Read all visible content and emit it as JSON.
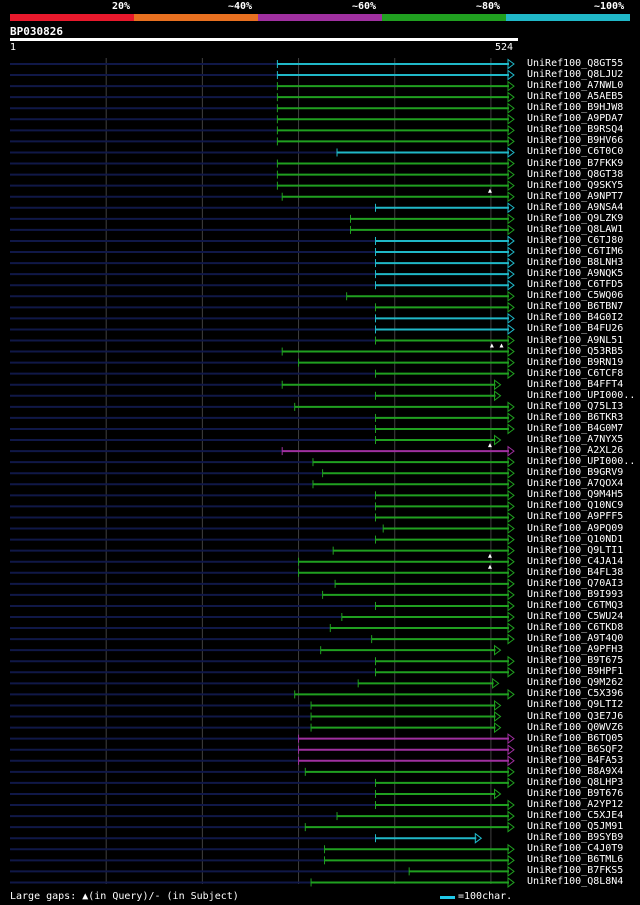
{
  "legend": [
    {
      "label": "20%",
      "color": "#e8192c"
    },
    {
      "label": "~40%",
      "color": "#e87020"
    },
    {
      "label": "~60%",
      "color": "#a030a0"
    },
    {
      "label": "~80%",
      "color": "#20a020"
    },
    {
      "label": "~100%",
      "color": "#20b8c8"
    }
  ],
  "query_id": "BP030826",
  "ruler": {
    "start_label": "1",
    "end_label": "524",
    "length": 524
  },
  "colors": {
    "background_line": "#101848",
    "grid": "#404040",
    "ruler": "#ffffff",
    "gap_marker": "#ffffff",
    "scale_bar": "#20c8e8"
  },
  "footer": {
    "gaps_text": "Large gaps: ▲(in Query)/- (in Subject)",
    "scale_text": "=100char."
  },
  "hits": [
    {
      "id": "UniRef100_Q8GT55",
      "start": 278,
      "end": 524,
      "identity": "cyan",
      "gaps": []
    },
    {
      "id": "UniRef100_Q8LJU2",
      "start": 278,
      "end": 524,
      "identity": "cyan",
      "gaps": []
    },
    {
      "id": "UniRef100_A7NWL0",
      "start": 278,
      "end": 524,
      "identity": "green",
      "gaps": []
    },
    {
      "id": "UniRef100_A5AEB5",
      "start": 278,
      "end": 524,
      "identity": "green",
      "gaps": []
    },
    {
      "id": "UniRef100_B9HJW8",
      "start": 278,
      "end": 524,
      "identity": "green",
      "gaps": []
    },
    {
      "id": "UniRef100_A9PDA7",
      "start": 278,
      "end": 524,
      "identity": "green",
      "gaps": []
    },
    {
      "id": "UniRef100_B9RSQ4",
      "start": 278,
      "end": 524,
      "identity": "green",
      "gaps": []
    },
    {
      "id": "UniRef100_B9HV66",
      "start": 278,
      "end": 524,
      "identity": "green",
      "gaps": []
    },
    {
      "id": "UniRef100_C6T0C0",
      "start": 340,
      "end": 524,
      "identity": "cyan",
      "gaps": []
    },
    {
      "id": "UniRef100_B7FKK9",
      "start": 278,
      "end": 524,
      "identity": "green",
      "gaps": []
    },
    {
      "id": "UniRef100_Q8GT38",
      "start": 278,
      "end": 524,
      "identity": "green",
      "gaps": []
    },
    {
      "id": "UniRef100_Q9SKY5",
      "start": 278,
      "end": 524,
      "identity": "green",
      "gaps": []
    },
    {
      "id": "UniRef100_A9NPT7",
      "start": 283,
      "end": 524,
      "identity": "green",
      "gaps": [
        499
      ]
    },
    {
      "id": "UniRef100_A9NSA4",
      "start": 380,
      "end": 524,
      "identity": "cyan",
      "gaps": []
    },
    {
      "id": "UniRef100_Q9LZK9",
      "start": 354,
      "end": 524,
      "identity": "green",
      "gaps": []
    },
    {
      "id": "UniRef100_Q8LAW1",
      "start": 354,
      "end": 524,
      "identity": "green",
      "gaps": []
    },
    {
      "id": "UniRef100_C6TJ80",
      "start": 380,
      "end": 524,
      "identity": "cyan",
      "gaps": []
    },
    {
      "id": "UniRef100_C6TIM6",
      "start": 380,
      "end": 524,
      "identity": "cyan",
      "gaps": []
    },
    {
      "id": "UniRef100_B8LNH3",
      "start": 380,
      "end": 524,
      "identity": "cyan",
      "gaps": []
    },
    {
      "id": "UniRef100_A9NQK5",
      "start": 380,
      "end": 524,
      "identity": "cyan",
      "gaps": []
    },
    {
      "id": "UniRef100_C6TFD5",
      "start": 380,
      "end": 524,
      "identity": "cyan",
      "gaps": []
    },
    {
      "id": "UniRef100_C5WQ06",
      "start": 350,
      "end": 524,
      "identity": "green",
      "gaps": []
    },
    {
      "id": "UniRef100_B6TBN7",
      "start": 380,
      "end": 524,
      "identity": "green",
      "gaps": []
    },
    {
      "id": "UniRef100_B4G0I2",
      "start": 380,
      "end": 524,
      "identity": "cyan",
      "gaps": []
    },
    {
      "id": "UniRef100_B4FU26",
      "start": 380,
      "end": 524,
      "identity": "cyan",
      "gaps": []
    },
    {
      "id": "UniRef100_A9NL51",
      "start": 380,
      "end": 524,
      "identity": "green",
      "gaps": []
    },
    {
      "id": "UniRef100_Q53RB5",
      "start": 283,
      "end": 524,
      "identity": "green",
      "gaps": [
        501,
        511
      ]
    },
    {
      "id": "UniRef100_B9RN19",
      "start": 300,
      "end": 524,
      "identity": "green",
      "gaps": []
    },
    {
      "id": "UniRef100_C6TCF8",
      "start": 380,
      "end": 524,
      "identity": "green",
      "gaps": []
    },
    {
      "id": "UniRef100_B4FFT4",
      "start": 283,
      "end": 510,
      "identity": "green",
      "gaps": []
    },
    {
      "id": "UniRef100_UPI000..",
      "start": 380,
      "end": 510,
      "identity": "green",
      "gaps": []
    },
    {
      "id": "UniRef100_Q75LI3",
      "start": 296,
      "end": 524,
      "identity": "green",
      "gaps": []
    },
    {
      "id": "UniRef100_B6TKR3",
      "start": 380,
      "end": 524,
      "identity": "green",
      "gaps": []
    },
    {
      "id": "UniRef100_B4G0M7",
      "start": 380,
      "end": 524,
      "identity": "green",
      "gaps": []
    },
    {
      "id": "UniRef100_A7NYX5",
      "start": 380,
      "end": 510,
      "identity": "green",
      "gaps": []
    },
    {
      "id": "UniRef100_A2XL26",
      "start": 283,
      "end": 524,
      "identity": "magenta",
      "gaps": [
        499
      ]
    },
    {
      "id": "UniRef100_UPI000..",
      "start": 315,
      "end": 524,
      "identity": "green",
      "gaps": []
    },
    {
      "id": "UniRef100_B9GRV9",
      "start": 325,
      "end": 524,
      "identity": "green",
      "gaps": []
    },
    {
      "id": "UniRef100_A7QOX4",
      "start": 315,
      "end": 524,
      "identity": "green",
      "gaps": []
    },
    {
      "id": "UniRef100_Q9M4H5",
      "start": 380,
      "end": 524,
      "identity": "green",
      "gaps": []
    },
    {
      "id": "UniRef100_Q10NC9",
      "start": 380,
      "end": 524,
      "identity": "green",
      "gaps": []
    },
    {
      "id": "UniRef100_A9PFF5",
      "start": 380,
      "end": 524,
      "identity": "green",
      "gaps": []
    },
    {
      "id": "UniRef100_A9PQ09",
      "start": 388,
      "end": 524,
      "identity": "green",
      "gaps": []
    },
    {
      "id": "UniRef100_Q10ND1",
      "start": 380,
      "end": 524,
      "identity": "green",
      "gaps": []
    },
    {
      "id": "UniRef100_Q9LTI1",
      "start": 336,
      "end": 524,
      "identity": "green",
      "gaps": []
    },
    {
      "id": "UniRef100_C4JA14",
      "start": 300,
      "end": 524,
      "identity": "green",
      "gaps": [
        499
      ]
    },
    {
      "id": "UniRef100_B4FL38",
      "start": 300,
      "end": 524,
      "identity": "green",
      "gaps": [
        499
      ]
    },
    {
      "id": "UniRef100_Q70AI3",
      "start": 338,
      "end": 524,
      "identity": "green",
      "gaps": []
    },
    {
      "id": "UniRef100_B9I993",
      "start": 325,
      "end": 524,
      "identity": "green",
      "gaps": []
    },
    {
      "id": "UniRef100_C6TMQ3",
      "start": 380,
      "end": 524,
      "identity": "green",
      "gaps": []
    },
    {
      "id": "UniRef100_C5WU24",
      "start": 345,
      "end": 524,
      "identity": "green",
      "gaps": []
    },
    {
      "id": "UniRef100_C6TKD8",
      "start": 333,
      "end": 524,
      "identity": "green",
      "gaps": []
    },
    {
      "id": "UniRef100_A9T4Q0",
      "start": 376,
      "end": 524,
      "identity": "green",
      "gaps": []
    },
    {
      "id": "UniRef100_A9PFH3",
      "start": 323,
      "end": 510,
      "identity": "green",
      "gaps": []
    },
    {
      "id": "UniRef100_B9T675",
      "start": 380,
      "end": 524,
      "identity": "green",
      "gaps": []
    },
    {
      "id": "UniRef100_B9HPF1",
      "start": 380,
      "end": 524,
      "identity": "green",
      "gaps": []
    },
    {
      "id": "UniRef100_Q9M262",
      "start": 362,
      "end": 508,
      "identity": "green",
      "gaps": []
    },
    {
      "id": "UniRef100_C5X396",
      "start": 296,
      "end": 524,
      "identity": "green",
      "gaps": []
    },
    {
      "id": "UniRef100_Q9LTI2",
      "start": 313,
      "end": 510,
      "identity": "green",
      "gaps": []
    },
    {
      "id": "UniRef100_Q3E7J6",
      "start": 313,
      "end": 510,
      "identity": "green",
      "gaps": []
    },
    {
      "id": "UniRef100_Q0WVZ6",
      "start": 313,
      "end": 510,
      "identity": "green",
      "gaps": []
    },
    {
      "id": "UniRef100_B6TQ05",
      "start": 300,
      "end": 524,
      "identity": "magenta",
      "gaps": []
    },
    {
      "id": "UniRef100_B6SQF2",
      "start": 300,
      "end": 524,
      "identity": "magenta",
      "gaps": []
    },
    {
      "id": "UniRef100_B4FA53",
      "start": 300,
      "end": 524,
      "identity": "magenta",
      "gaps": []
    },
    {
      "id": "UniRef100_B8A9X4",
      "start": 307,
      "end": 524,
      "identity": "green",
      "gaps": []
    },
    {
      "id": "UniRef100_Q8LHP3",
      "start": 380,
      "end": 524,
      "identity": "green",
      "gaps": []
    },
    {
      "id": "UniRef100_B9T676",
      "start": 380,
      "end": 510,
      "identity": "green",
      "gaps": []
    },
    {
      "id": "UniRef100_A2YP12",
      "start": 380,
      "end": 524,
      "identity": "green",
      "gaps": []
    },
    {
      "id": "UniRef100_C5XJE4",
      "start": 340,
      "end": 524,
      "identity": "green",
      "gaps": []
    },
    {
      "id": "UniRef100_Q5JM91",
      "start": 307,
      "end": 524,
      "identity": "green",
      "gaps": []
    },
    {
      "id": "UniRef100_B9SYB9",
      "start": 380,
      "end": 490,
      "identity": "cyan",
      "gaps": []
    },
    {
      "id": "UniRef100_C4J0T9",
      "start": 327,
      "end": 524,
      "identity": "green",
      "gaps": []
    },
    {
      "id": "UniRef100_B6TML6",
      "start": 327,
      "end": 524,
      "identity": "green",
      "gaps": []
    },
    {
      "id": "UniRef100_B7FKS5",
      "start": 415,
      "end": 524,
      "identity": "green",
      "gaps": []
    },
    {
      "id": "UniRef100_Q8L8N4",
      "start": 313,
      "end": 524,
      "identity": "green",
      "gaps": []
    }
  ]
}
